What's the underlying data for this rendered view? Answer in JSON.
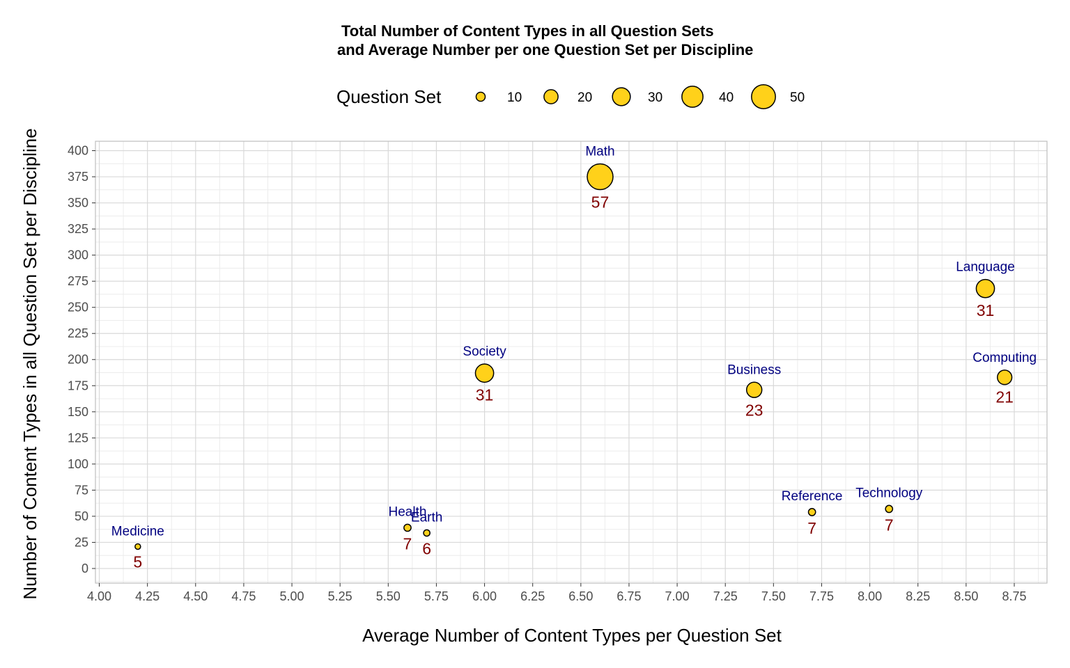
{
  "chart_data": {
    "type": "scatter",
    "title": "Total Number of Content Types in all Question Sets",
    "subtitle": "and Average Number per one Question Set per Discipline",
    "xlabel": "Average Number of Content Types per Question Set",
    "ylabel": "Number of Content Types in all Question Set per Discipline",
    "xlim": [
      3.98,
      8.92
    ],
    "ylim": [
      -14,
      409
    ],
    "x_ticks": [
      "4.00",
      "4.25",
      "4.50",
      "4.75",
      "5.00",
      "5.25",
      "5.50",
      "5.75",
      "6.00",
      "6.25",
      "6.50",
      "6.75",
      "7.00",
      "7.25",
      "7.50",
      "7.75",
      "8.00",
      "8.25",
      "8.50",
      "8.75"
    ],
    "y_ticks": [
      "0",
      "25",
      "50",
      "75",
      "100",
      "125",
      "150",
      "175",
      "200",
      "225",
      "250",
      "275",
      "300",
      "325",
      "350",
      "375",
      "400"
    ],
    "grid": true,
    "legend": {
      "title": "Question Set",
      "placement": "top",
      "sizes": [
        10,
        20,
        30,
        40,
        50
      ],
      "labels": [
        "10",
        "20",
        "30",
        "40",
        "50"
      ]
    },
    "size_range": [
      5,
      57
    ],
    "points": [
      {
        "name": "Medicine",
        "x": 4.2,
        "y": 21,
        "size": 5,
        "label": "5"
      },
      {
        "name": "Health",
        "x": 5.6,
        "y": 39,
        "size": 7,
        "label": "7"
      },
      {
        "name": "Earth",
        "x": 5.7,
        "y": 34,
        "size": 6,
        "label": "6"
      },
      {
        "name": "Society",
        "x": 6.0,
        "y": 187,
        "size": 31,
        "label": "31"
      },
      {
        "name": "Math",
        "x": 6.6,
        "y": 375,
        "size": 57,
        "label": "57"
      },
      {
        "name": "Business",
        "x": 7.4,
        "y": 171,
        "size": 23,
        "label": "23"
      },
      {
        "name": "Reference",
        "x": 7.7,
        "y": 54,
        "size": 7,
        "label": "7"
      },
      {
        "name": "Technology",
        "x": 8.1,
        "y": 57,
        "size": 7,
        "label": "7"
      },
      {
        "name": "Language",
        "x": 8.6,
        "y": 268,
        "size": 31,
        "label": "31"
      },
      {
        "name": "Computing",
        "x": 8.7,
        "y": 183,
        "size": 21,
        "label": "21"
      }
    ],
    "colors": {
      "point_fill": "#FFD11A",
      "point_stroke": "#000000",
      "name_label": "#000080",
      "count_label": "#800000",
      "grid_major": "#d9d9d9",
      "grid_minor": "#ececec",
      "panel_border": "#bfbfbf"
    }
  }
}
